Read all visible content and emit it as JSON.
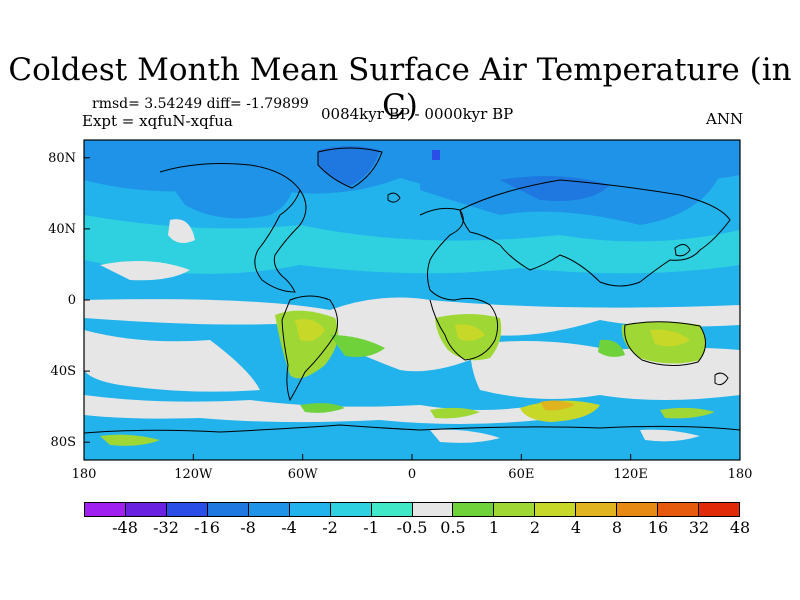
{
  "title": "Coldest Month Mean Surface Air Temperature (in C)",
  "stats": "rmsd= 3.54249 diff= -1.79899",
  "experiment": "Expt = xqfuN-xqfua",
  "period": "0084kyr BP - 0000kyr BP",
  "season": "ANN",
  "map": {
    "projection": "cylindrical-equidistant",
    "lon_range": [
      -180,
      180
    ],
    "lat_range": [
      -90,
      90
    ],
    "x_ticks": [
      "180",
      "120W",
      "60W",
      "0",
      "60E",
      "120E",
      "180"
    ],
    "y_ticks": [
      "80N",
      "40N",
      "0",
      "40S",
      "80S"
    ]
  },
  "colorbar": {
    "labels": [
      "-48",
      "-32",
      "-16",
      "-8",
      "-4",
      "-2",
      "-1",
      "-0.5",
      "0.5",
      "1",
      "2",
      "4",
      "8",
      "16",
      "32",
      "48"
    ],
    "colors": [
      "#a020f0",
      "#6a22e0",
      "#2b4fe6",
      "#1f78e0",
      "#1e93e8",
      "#22b2ec",
      "#2fd0e0",
      "#40e8c8",
      "#e6e6e6",
      "#6fd23a",
      "#9fd835",
      "#c8d828",
      "#e0b41e",
      "#e68a14",
      "#e65a0e",
      "#e02a08"
    ],
    "neutral_color": "#e6e6e6"
  }
}
